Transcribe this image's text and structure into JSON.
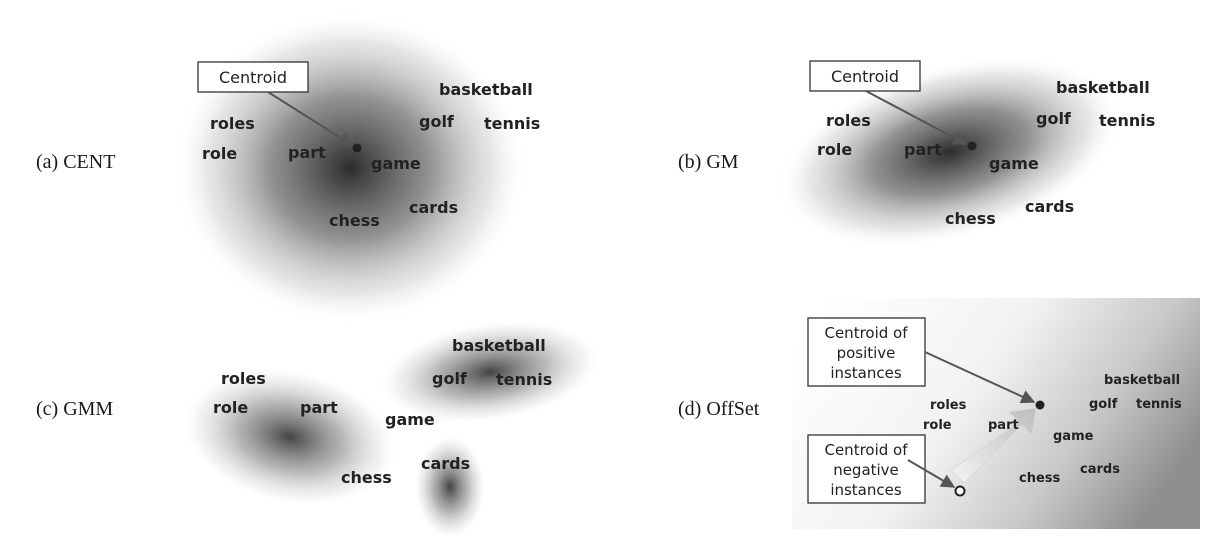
{
  "panels": {
    "a": {
      "label": "(a) CENT",
      "callout": "Centroid",
      "words": {
        "roles": "roles",
        "role": "role",
        "part": "part",
        "game": "game",
        "golf": "golf",
        "basketball": "basketball",
        "tennis": "tennis",
        "chess": "chess",
        "cards": "cards"
      }
    },
    "b": {
      "label": "(b) GM",
      "callout": "Centroid",
      "words": {
        "roles": "roles",
        "role": "role",
        "part": "part",
        "game": "game",
        "golf": "golf",
        "basketball": "basketball",
        "tennis": "tennis",
        "chess": "chess",
        "cards": "cards"
      }
    },
    "c": {
      "label": "(c) GMM",
      "words": {
        "roles": "roles",
        "role": "role",
        "part": "part",
        "game": "game",
        "golf": "golf",
        "basketball": "basketball",
        "tennis": "tennis",
        "chess": "chess",
        "cards": "cards"
      }
    },
    "d": {
      "label": "(d) OffSet",
      "callout_positive": [
        "Centroid of",
        "positive",
        "instances"
      ],
      "callout_negative": [
        "Centroid of",
        "negative",
        "instances"
      ],
      "words": {
        "roles": "roles",
        "role": "role",
        "part": "part",
        "game": "game",
        "golf": "golf",
        "basketball": "basketball",
        "tennis": "tennis",
        "chess": "chess",
        "cards": "cards"
      }
    }
  }
}
